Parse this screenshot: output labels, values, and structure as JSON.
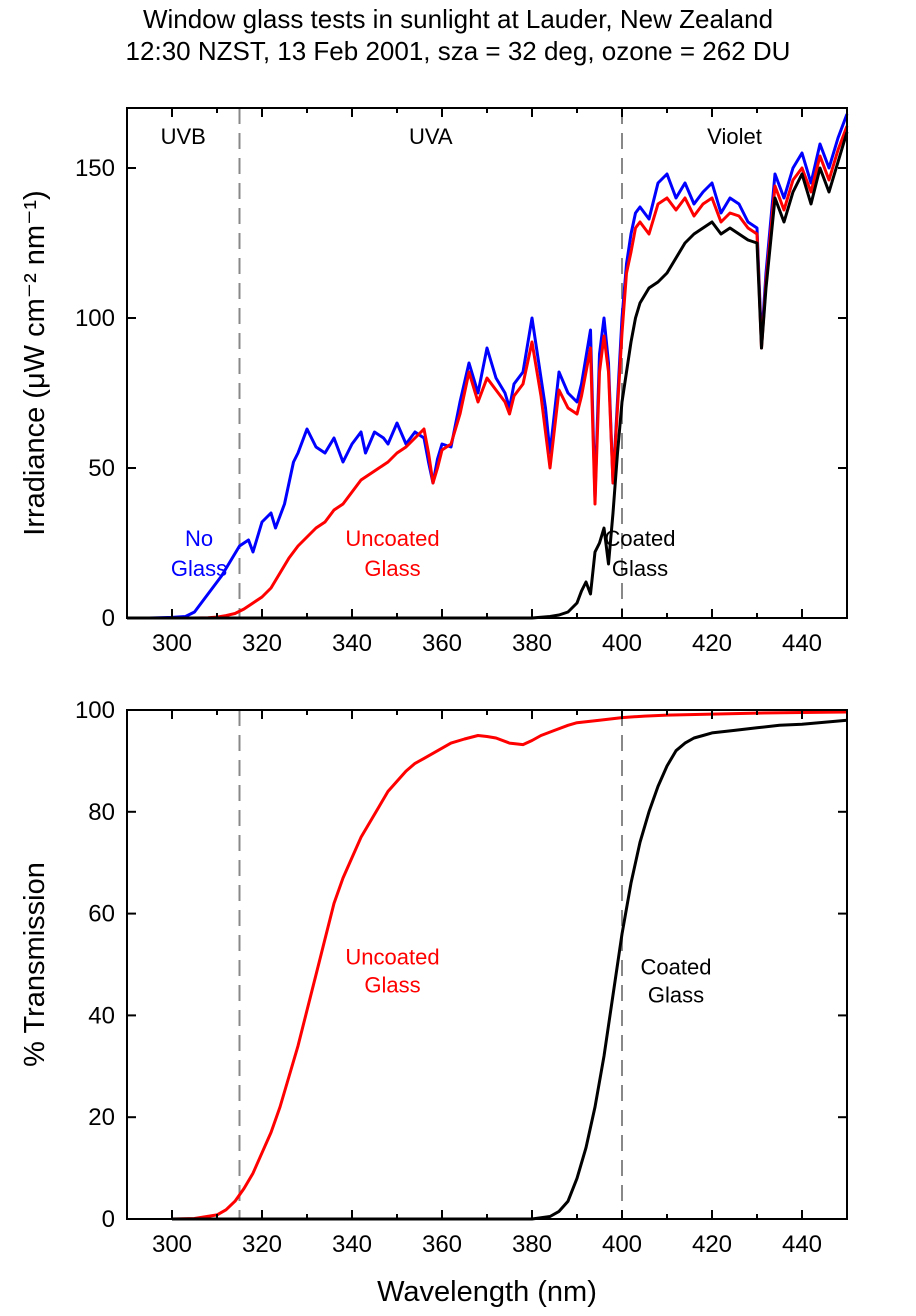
{
  "title": {
    "line1": "Window glass tests in sunlight at Lauder, New Zealand",
    "line2": "12:30 NZST, 13 Feb 2001, sza = 32 deg, ozone = 262 DU"
  },
  "colors": {
    "no_glass": "#0000ff",
    "uncoated": "#ff0000",
    "coated": "#000000",
    "divider": "#888888"
  },
  "chart_data": [
    {
      "type": "line",
      "ylabel": "Irradiance (μW cm⁻² nm⁻¹)",
      "xlim": [
        290,
        450
      ],
      "ylim": [
        0,
        170
      ],
      "xticks": [
        300,
        320,
        340,
        360,
        380,
        400,
        420,
        440
      ],
      "yticks": [
        0,
        50,
        100,
        150
      ],
      "grid": false,
      "bands": [
        {
          "label": "UVB",
          "x_center": 302.5
        },
        {
          "label": "UVA",
          "x_center": 357.5
        },
        {
          "label": "Violet",
          "x_center": 425
        }
      ],
      "dividers": [
        315,
        400
      ],
      "annotations": [
        {
          "line1": "No",
          "line2": "Glass",
          "x": 306,
          "y1": 24,
          "y2": 14,
          "color": "#0000ff"
        },
        {
          "line1": "Uncoated",
          "line2": "Glass",
          "x": 349,
          "y1": 24,
          "y2": 14,
          "color": "#ff0000"
        },
        {
          "line1": "Coated",
          "line2": "Glass",
          "x": 404,
          "y1": 24,
          "y2": 14,
          "color": "#000000"
        }
      ],
      "series": [
        {
          "key": "no_glass",
          "color": "#0000ff",
          "x": [
            290,
            295,
            300,
            303,
            305,
            307,
            309,
            311,
            313,
            315,
            317,
            318,
            320,
            322,
            323,
            325,
            327,
            328,
            330,
            332,
            334,
            336,
            338,
            340,
            342,
            343,
            345,
            347,
            348,
            350,
            352,
            354,
            356,
            357,
            358,
            359,
            360,
            362,
            364,
            366,
            368,
            370,
            372,
            374,
            375,
            376,
            378,
            380,
            382,
            383,
            384,
            386,
            388,
            390,
            391,
            393,
            394,
            395,
            396,
            397,
            398,
            400,
            401,
            402,
            403,
            404,
            406,
            408,
            410,
            412,
            414,
            416,
            418,
            420,
            422,
            424,
            426,
            428,
            430,
            431,
            432,
            434,
            436,
            438,
            440,
            442,
            444,
            446,
            448,
            450
          ],
          "y": [
            0,
            0,
            0.2,
            0.5,
            2,
            6,
            10,
            14,
            19,
            24,
            26,
            22,
            32,
            35,
            30,
            38,
            52,
            55,
            63,
            57,
            55,
            60,
            52,
            58,
            62,
            55,
            62,
            60,
            58,
            65,
            58,
            62,
            60,
            52,
            45,
            53,
            58,
            57,
            72,
            85,
            75,
            90,
            80,
            75,
            70,
            78,
            82,
            100,
            80,
            70,
            55,
            82,
            75,
            72,
            78,
            96,
            40,
            88,
            100,
            85,
            45,
            100,
            118,
            128,
            135,
            137,
            133,
            145,
            148,
            140,
            145,
            138,
            142,
            145,
            135,
            140,
            138,
            132,
            130,
            92,
            115,
            148,
            140,
            150,
            155,
            145,
            158,
            150,
            160,
            168
          ]
        },
        {
          "key": "uncoated",
          "color": "#ff0000",
          "x": [
            290,
            300,
            305,
            308,
            310,
            312,
            314,
            316,
            318,
            320,
            322,
            324,
            326,
            328,
            330,
            332,
            334,
            336,
            338,
            340,
            342,
            344,
            346,
            348,
            350,
            352,
            354,
            356,
            357,
            358,
            359,
            360,
            362,
            364,
            366,
            368,
            370,
            372,
            374,
            375,
            376,
            378,
            380,
            382,
            383,
            384,
            386,
            388,
            390,
            391,
            393,
            394,
            395,
            396,
            397,
            398,
            400,
            401,
            402,
            403,
            404,
            406,
            408,
            410,
            412,
            414,
            416,
            418,
            420,
            422,
            424,
            426,
            428,
            430,
            431,
            432,
            434,
            436,
            438,
            440,
            442,
            444,
            446,
            448,
            450
          ],
          "y": [
            0,
            0,
            0,
            0.1,
            0.3,
            0.8,
            1.5,
            3,
            5,
            7,
            10,
            15,
            20,
            24,
            27,
            30,
            32,
            36,
            38,
            42,
            46,
            48,
            50,
            52,
            55,
            57,
            60,
            63,
            55,
            45,
            50,
            56,
            58,
            68,
            82,
            72,
            80,
            76,
            72,
            68,
            74,
            78,
            92,
            74,
            62,
            50,
            76,
            70,
            68,
            74,
            90,
            38,
            82,
            94,
            82,
            45,
            95,
            115,
            122,
            130,
            132,
            128,
            138,
            140,
            136,
            140,
            134,
            138,
            140,
            132,
            135,
            134,
            130,
            128,
            90,
            112,
            144,
            136,
            146,
            150,
            142,
            154,
            146,
            156,
            164
          ]
        },
        {
          "key": "coated",
          "color": "#000000",
          "x": [
            290,
            380,
            384,
            386,
            388,
            390,
            391,
            392,
            393,
            394,
            395,
            396,
            397,
            398,
            399,
            400,
            401,
            402,
            403,
            404,
            406,
            408,
            410,
            412,
            414,
            416,
            418,
            420,
            422,
            424,
            426,
            428,
            430,
            431,
            432,
            434,
            436,
            438,
            440,
            442,
            444,
            446,
            448,
            450
          ],
          "y": [
            0,
            0,
            0.5,
            1,
            2,
            5,
            9,
            12,
            8,
            22,
            25,
            30,
            18,
            35,
            55,
            72,
            82,
            92,
            100,
            105,
            110,
            112,
            115,
            120,
            125,
            128,
            130,
            132,
            128,
            130,
            128,
            126,
            125,
            90,
            110,
            140,
            132,
            142,
            148,
            138,
            150,
            142,
            152,
            162
          ]
        }
      ]
    },
    {
      "type": "line",
      "xlabel": "Wavelength (nm)",
      "ylabel": "% Transmission",
      "xlim": [
        290,
        450
      ],
      "ylim": [
        0,
        100
      ],
      "xticks": [
        300,
        320,
        340,
        360,
        380,
        400,
        420,
        440
      ],
      "yticks": [
        0,
        20,
        40,
        60,
        80,
        100
      ],
      "grid": false,
      "dividers": [
        315,
        400
      ],
      "annotations": [
        {
          "line1": "Uncoated",
          "line2": "Glass",
          "x": 349,
          "y1": 50,
          "y2": 44.5,
          "color": "#ff0000"
        },
        {
          "line1": "Coated",
          "line2": "Glass",
          "x": 412,
          "y1": 48,
          "y2": 42.5,
          "color": "#000000"
        }
      ],
      "series": [
        {
          "key": "uncoated",
          "color": "#ff0000",
          "x": [
            300,
            305,
            310,
            312,
            314,
            316,
            318,
            320,
            322,
            324,
            326,
            328,
            330,
            332,
            334,
            336,
            338,
            340,
            342,
            344,
            346,
            348,
            350,
            352,
            354,
            356,
            358,
            360,
            362,
            365,
            368,
            370,
            372,
            375,
            378,
            380,
            382,
            385,
            388,
            390,
            395,
            400,
            405,
            410,
            415,
            420,
            425,
            430,
            440,
            450
          ],
          "y": [
            0,
            0.1,
            0.8,
            1.8,
            3.5,
            6,
            9,
            13,
            17,
            22,
            28,
            34,
            41,
            48,
            55,
            62,
            67,
            71,
            75,
            78,
            81,
            84,
            86,
            88,
            89.5,
            90.5,
            91.5,
            92.5,
            93.5,
            94.3,
            95,
            94.8,
            94.5,
            93.5,
            93.2,
            94,
            95,
            96,
            97,
            97.5,
            98,
            98.5,
            98.8,
            99,
            99.1,
            99.2,
            99.3,
            99.4,
            99.5,
            99.6
          ]
        },
        {
          "key": "coated",
          "color": "#000000",
          "x": [
            300,
            380,
            384,
            386,
            388,
            390,
            392,
            394,
            396,
            398,
            400,
            402,
            404,
            406,
            408,
            410,
            412,
            414,
            416,
            418,
            420,
            425,
            430,
            435,
            440,
            450
          ],
          "y": [
            0,
            0,
            0.5,
            1.5,
            3.5,
            8,
            14,
            22,
            32,
            44,
            56,
            66,
            74,
            80,
            85,
            89,
            92,
            93.5,
            94.5,
            95,
            95.5,
            96,
            96.5,
            97,
            97.2,
            98
          ]
        }
      ]
    }
  ]
}
